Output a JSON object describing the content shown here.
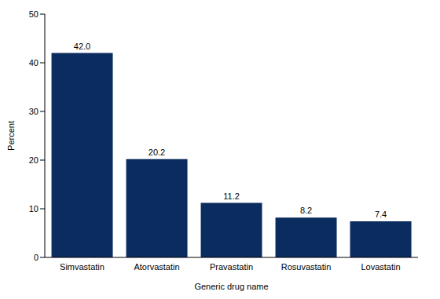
{
  "chart_data": {
    "type": "bar",
    "categories": [
      "Simvastatin",
      "Atorvastatin",
      "Pravastatin",
      "Rosuvastatin",
      "Lovastatin"
    ],
    "values": [
      42.0,
      20.2,
      11.2,
      8.2,
      7.4
    ],
    "color": "#0b2c5e",
    "ylim": [
      0,
      50
    ],
    "yticks": [
      0,
      10,
      20,
      30,
      40,
      50
    ],
    "x_label": "Generic drug name",
    "y_label": "Percent",
    "data_labels": true,
    "grid": false
  }
}
